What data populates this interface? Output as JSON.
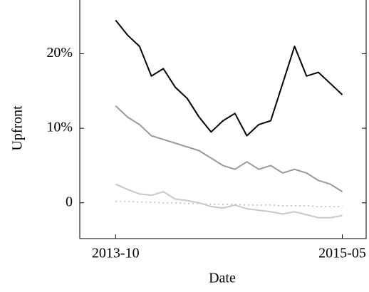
{
  "chart_data": {
    "type": "line",
    "x_label": "Date",
    "y_label": "Upfront",
    "x": [
      "2013-10",
      "2013-11",
      "2013-12",
      "2014-01",
      "2014-02",
      "2014-03",
      "2014-04",
      "2014-05",
      "2014-06",
      "2014-07",
      "2014-08",
      "2014-09",
      "2014-10",
      "2014-11",
      "2014-12",
      "2015-01",
      "2015-02",
      "2015-03",
      "2015-04",
      "2015-05"
    ],
    "xlim": [
      "2013-07",
      "2015-07"
    ],
    "xticks": [
      "2013-10",
      "2015-05"
    ],
    "ylim": [
      -4.8,
      27.4
    ],
    "yticks": [
      0,
      {
        "value": 10,
        "label": "10%"
      },
      {
        "value": 20,
        "label": "20%"
      }
    ],
    "grid": false,
    "series": [
      {
        "color": "#000000",
        "style": "solid",
        "values": [
          24.5,
          22.5,
          21,
          17,
          18,
          15.5,
          14,
          11.5,
          9.5,
          11,
          12,
          9,
          10.5,
          11,
          16,
          21,
          17,
          17.5,
          16,
          14.5
        ]
      },
      {
        "color": "#999999",
        "style": "solid",
        "values": [
          13,
          11.5,
          10.5,
          9,
          8.5,
          8,
          7.5,
          7,
          6,
          5,
          4.5,
          5.5,
          4.5,
          5,
          4,
          4.5,
          4,
          3,
          2.5,
          1.5
        ]
      },
      {
        "color": "#c8c8c8",
        "style": "solid",
        "values": [
          2.5,
          1.8,
          1.2,
          1,
          1.5,
          0.5,
          0.3,
          0,
          -0.5,
          -0.7,
          -0.3,
          -0.8,
          -1,
          -1.2,
          -1.5,
          -1.2,
          -1.6,
          -2,
          -2,
          -1.7
        ]
      },
      {
        "color": "#c8c8c8",
        "style": "dotted",
        "values": [
          0.2,
          0.2,
          0.1,
          0.1,
          0,
          0,
          -0.1,
          -0.1,
          -0.2,
          -0.2,
          -0.2,
          -0.3,
          -0.3,
          -0.3,
          -0.4,
          -0.4,
          -0.4,
          -0.5,
          -0.5,
          -0.5
        ]
      }
    ]
  }
}
